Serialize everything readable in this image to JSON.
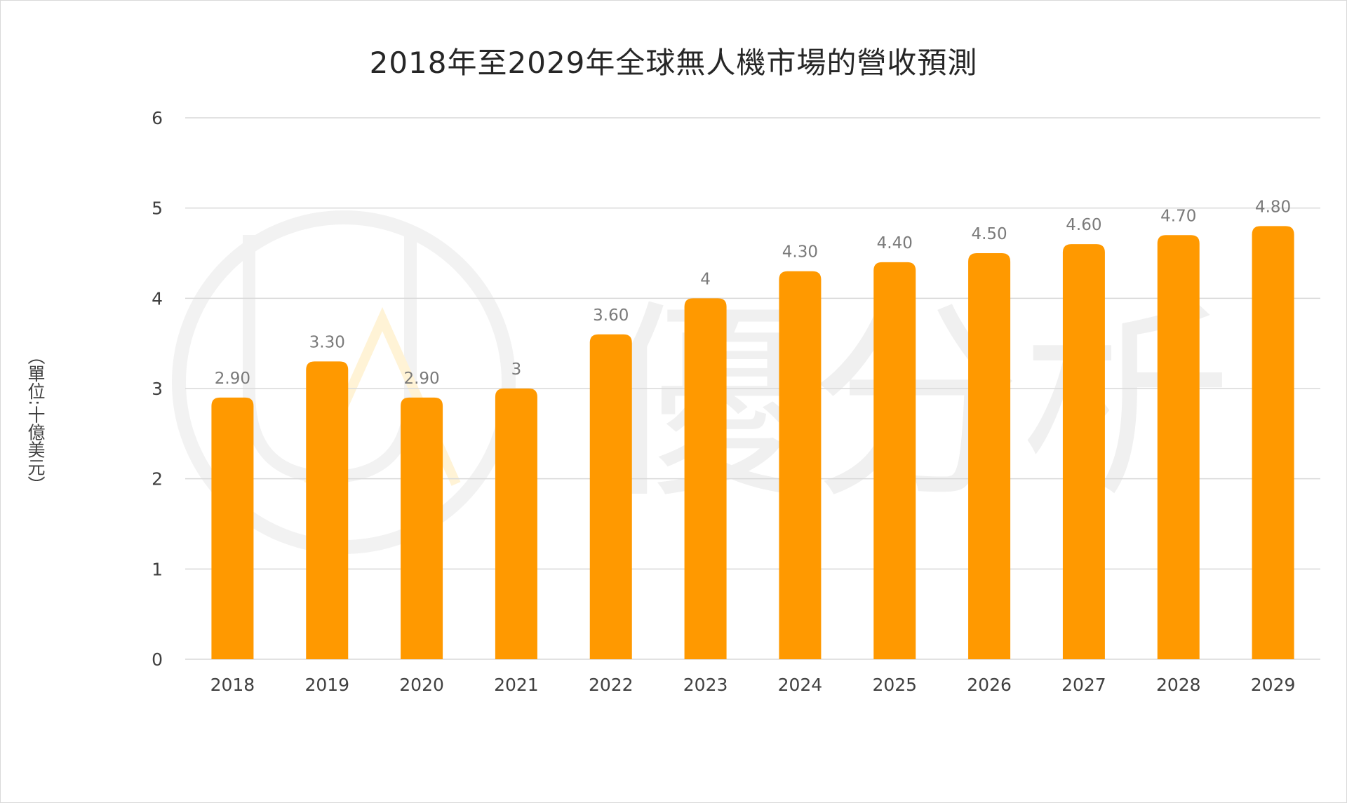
{
  "colors": {
    "bar": "#FF9900",
    "grid": "#d9d9d9",
    "watermark": "#f2f2f2",
    "watermark_accent": "#fff3d6"
  },
  "watermark": {
    "text": "優分析",
    "logo_icon": "ua-logo-icon"
  },
  "chart_data": {
    "type": "bar",
    "title": "2018年至2029年全球無人機市場的營收預測",
    "xlabel": "",
    "ylabel": "（單位:十億美元）",
    "ylim": [
      0,
      6
    ],
    "yticks": [
      "0",
      "1",
      "2",
      "3",
      "4",
      "5",
      "6"
    ],
    "grid": true,
    "legend": "none",
    "categories": [
      "2018",
      "2019",
      "2020",
      "2021",
      "2022",
      "2023",
      "2024",
      "2025",
      "2026",
      "2027",
      "2028",
      "2029"
    ],
    "values": [
      2.9,
      3.3,
      2.9,
      3,
      3.6,
      4,
      4.3,
      4.4,
      4.5,
      4.6,
      4.7,
      4.8
    ],
    "data_labels": [
      "2.90",
      "3.30",
      "2.90",
      "3",
      "3.60",
      "4",
      "4.30",
      "4.40",
      "4.50",
      "4.60",
      "4.70",
      "4.80"
    ]
  }
}
